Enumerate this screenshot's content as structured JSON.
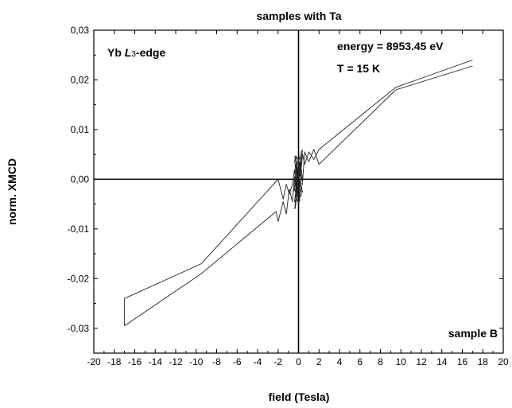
{
  "chart_data": {
    "type": "line",
    "title": "samples with Ta",
    "xlabel": "field (Tesla)",
    "ylabel": "norm. XMCD",
    "xlim": [
      -20,
      20
    ],
    "ylim": [
      -0.035,
      0.03
    ],
    "x_ticks": [
      -20,
      -18,
      -16,
      -14,
      -12,
      -10,
      -8,
      -6,
      -4,
      -2,
      0,
      2,
      4,
      6,
      8,
      10,
      12,
      14,
      16,
      18,
      20
    ],
    "x_tick_labels": [
      "-20",
      "-18",
      "-16",
      "-14",
      "-12",
      "-10",
      "-8",
      "-6",
      "-4",
      "-2",
      "0",
      "2",
      "4",
      "6",
      "8",
      "10",
      "12",
      "14",
      "16",
      "18",
      "20"
    ],
    "y_ticks": [
      -0.03,
      -0.02,
      -0.01,
      0.0,
      0.01,
      0.02,
      0.03
    ],
    "y_tick_labels": [
      "-0,03",
      "-0,02",
      "-0,01",
      "0,00",
      "0,01",
      "0,02",
      "0,03"
    ],
    "grid": false,
    "annotations": {
      "edge_prefix": "Yb ",
      "edge_italic": "L",
      "edge_sub": "3",
      "edge_suffix": "-edge",
      "energy": "energy = 8953.45 eV",
      "temperature": "T = 15 K",
      "sample": "sample B"
    },
    "series": [
      {
        "x": [
          -17,
          -9.5,
          -2.2,
          -2,
          -1.5,
          -1.2,
          -0.9,
          -0.6,
          -0.4,
          -0.2,
          0,
          0.2,
          0.4,
          0.6,
          1,
          1.5,
          2,
          9.5,
          17
        ],
        "y": [
          -0.0295,
          -0.019,
          -0.0065,
          -0.0085,
          -0.0045,
          -0.007,
          -0.002,
          -0.0045,
          0.0005,
          -0.0025,
          0.0015,
          0.0035,
          -0.0005,
          0.0055,
          0.0035,
          0.006,
          0.003,
          0.018,
          0.0228
        ]
      },
      {
        "x": [
          17,
          9.5,
          2,
          1.5,
          1,
          0.6,
          0.4,
          0.2,
          0,
          -0.2,
          -0.4,
          -0.6,
          -0.9,
          -1.2,
          -1.5,
          -2,
          -9.5,
          -17,
          -17
        ],
        "y": [
          0.024,
          0.0185,
          0.006,
          0.004,
          0.0055,
          0.003,
          0.005,
          0.001,
          0.004,
          -0.0015,
          0.002,
          -0.001,
          -0.003,
          -0.001,
          -0.004,
          0.0,
          -0.017,
          -0.024,
          -0.0295
        ]
      }
    ]
  }
}
